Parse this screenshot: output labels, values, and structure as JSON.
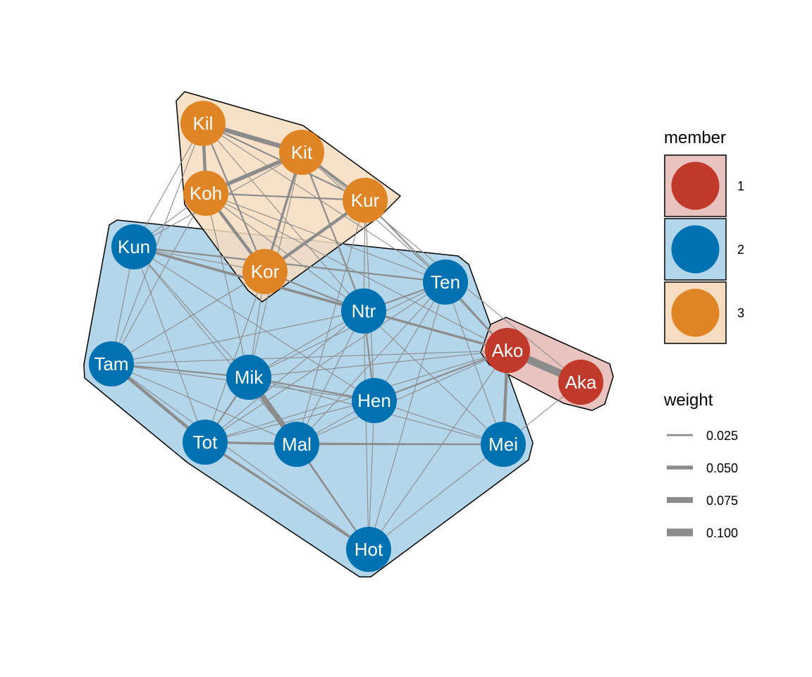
{
  "colors": {
    "member_1": "#c0392b",
    "member_2": "#0072b2",
    "member_3": "#e08526",
    "hull_1": "#e9c3c0",
    "hull_2": "#b4d6ea",
    "hull_3": "#f6dcc0",
    "edge": "#8c8c8c"
  },
  "nodes": [
    {
      "id": "Kil",
      "label": "Kil",
      "member": 3
    },
    {
      "id": "Kit",
      "label": "Kit",
      "member": 3
    },
    {
      "id": "Koh",
      "label": "Koh",
      "member": 3
    },
    {
      "id": "Kur",
      "label": "Kur",
      "member": 3
    },
    {
      "id": "Kor",
      "label": "Kor",
      "member": 3
    },
    {
      "id": "Kun",
      "label": "Kun",
      "member": 2
    },
    {
      "id": "Ten",
      "label": "Ten",
      "member": 2
    },
    {
      "id": "Ntr",
      "label": "Ntr",
      "member": 2
    },
    {
      "id": "Tam",
      "label": "Tam",
      "member": 2
    },
    {
      "id": "Mik",
      "label": "Mik",
      "member": 2
    },
    {
      "id": "Hen",
      "label": "Hen",
      "member": 2
    },
    {
      "id": "Tot",
      "label": "Tot",
      "member": 2
    },
    {
      "id": "Mal",
      "label": "Mal",
      "member": 2
    },
    {
      "id": "Mei",
      "label": "Mei",
      "member": 2
    },
    {
      "id": "Hot",
      "label": "Hot",
      "member": 2
    },
    {
      "id": "Ako",
      "label": "Ako",
      "member": 1
    },
    {
      "id": "Aka",
      "label": "Aka",
      "member": 1
    }
  ],
  "edges": [
    [
      "Kil",
      "Kit",
      0.06
    ],
    [
      "Kil",
      "Koh",
      0.04
    ],
    [
      "Kil",
      "Kur",
      0.02
    ],
    [
      "Kil",
      "Kor",
      0.02
    ],
    [
      "Kil",
      "Kun",
      0.01
    ],
    [
      "Kil",
      "Ntr",
      0.01
    ],
    [
      "Kil",
      "Ten",
      0.01
    ],
    [
      "Kit",
      "Koh",
      0.05
    ],
    [
      "Kit",
      "Kur",
      0.03
    ],
    [
      "Kit",
      "Kor",
      0.03
    ],
    [
      "Kit",
      "Ntr",
      0.02
    ],
    [
      "Kit",
      "Mik",
      0.01
    ],
    [
      "Kit",
      "Kun",
      0.01
    ],
    [
      "Kit",
      "Ten",
      0.01
    ],
    [
      "Koh",
      "Kur",
      0.02
    ],
    [
      "Koh",
      "Kor",
      0.04
    ],
    [
      "Koh",
      "Kun",
      0.01
    ],
    [
      "Koh",
      "Ten",
      0.01
    ],
    [
      "Koh",
      "Ntr",
      0.01
    ],
    [
      "Koh",
      "Ako",
      0.01
    ],
    [
      "Koh",
      "Mik",
      0.01
    ],
    [
      "Koh",
      "Tam",
      0.01
    ],
    [
      "Kur",
      "Kor",
      0.04
    ],
    [
      "Kur",
      "Ntr",
      0.01
    ],
    [
      "Kur",
      "Ten",
      0.01
    ],
    [
      "Kur",
      "Mal",
      0.01
    ],
    [
      "Kur",
      "Hen",
      0.01
    ],
    [
      "Kur",
      "Ako",
      0.01
    ],
    [
      "Kor",
      "Ntr",
      0.02
    ],
    [
      "Kor",
      "Tam",
      0.01
    ],
    [
      "Kor",
      "Mik",
      0.01
    ],
    [
      "Kor",
      "Tot",
      0.01
    ],
    [
      "Kun",
      "Ten",
      0.02
    ],
    [
      "Kun",
      "Ntr",
      0.03
    ],
    [
      "Kun",
      "Tam",
      0.01
    ],
    [
      "Kun",
      "Mik",
      0.01
    ],
    [
      "Kun",
      "Ako",
      0.03
    ],
    [
      "Kun",
      "Tot",
      0.01
    ],
    [
      "Kun",
      "Hen",
      0.01
    ],
    [
      "Kun",
      "Mal",
      0.01
    ],
    [
      "Kun",
      "Kor",
      0.01
    ],
    [
      "Ten",
      "Ntr",
      0.02
    ],
    [
      "Ten",
      "Ako",
      0.02
    ],
    [
      "Ten",
      "Mik",
      0.01
    ],
    [
      "Ten",
      "Tot",
      0.01
    ],
    [
      "Ten",
      "Hen",
      0.01
    ],
    [
      "Ten",
      "Mal",
      0.01
    ],
    [
      "Ten",
      "Mei",
      0.01
    ],
    [
      "Ten",
      "Hot",
      0.01
    ],
    [
      "Ntr",
      "Ako",
      0.02
    ],
    [
      "Ntr",
      "Hen",
      0.02
    ],
    [
      "Ntr",
      "Mik",
      0.01
    ],
    [
      "Ntr",
      "Tam",
      0.01
    ],
    [
      "Ntr",
      "Tot",
      0.01
    ],
    [
      "Ntr",
      "Mal",
      0.01
    ],
    [
      "Ntr",
      "Hot",
      0.01
    ],
    [
      "Ntr",
      "Mei",
      0.01
    ],
    [
      "Tam",
      "Tot",
      0.04
    ],
    [
      "Tam",
      "Mik",
      0.02
    ],
    [
      "Tam",
      "Ako",
      0.01
    ],
    [
      "Tam",
      "Hen",
      0.01
    ],
    [
      "Tam",
      "Mal",
      0.01
    ],
    [
      "Tam",
      "Hot",
      0.01
    ],
    [
      "Mik",
      "Mal",
      0.07
    ],
    [
      "Mik",
      "Hen",
      0.02
    ],
    [
      "Mik",
      "Tot",
      0.02
    ],
    [
      "Mik",
      "Ako",
      0.01
    ],
    [
      "Mik",
      "Mei",
      0.01
    ],
    [
      "Mik",
      "Hot",
      0.01
    ],
    [
      "Hen",
      "Ako",
      0.02
    ],
    [
      "Hen",
      "Tot",
      0.01
    ],
    [
      "Hen",
      "Mal",
      0.01
    ],
    [
      "Hen",
      "Mei",
      0.01
    ],
    [
      "Hen",
      "Hot",
      0.01
    ],
    [
      "Tot",
      "Mal",
      0.03
    ],
    [
      "Tot",
      "Hot",
      0.03
    ],
    [
      "Tot",
      "Mei",
      0.01
    ],
    [
      "Tot",
      "Ako",
      0.01
    ],
    [
      "Mal",
      "Mei",
      0.02
    ],
    [
      "Mal",
      "Hot",
      0.02
    ],
    [
      "Mal",
      "Ako",
      0.01
    ],
    [
      "Mei",
      "Ako",
      0.04
    ],
    [
      "Mei",
      "Hot",
      0.01
    ],
    [
      "Mei",
      "Aka",
      0.01
    ],
    [
      "Hot",
      "Ako",
      0.01
    ],
    [
      "Ako",
      "Aka",
      0.1
    ],
    [
      "Kil",
      "Tam",
      0.01
    ],
    [
      "Kit",
      "Aka",
      0.01
    ]
  ],
  "legend": {
    "member": {
      "title": "member",
      "items": [
        {
          "label": "1",
          "member": 1
        },
        {
          "label": "2",
          "member": 2
        },
        {
          "label": "3",
          "member": 3
        }
      ]
    },
    "weight": {
      "title": "weight",
      "items": [
        {
          "label": "0.025",
          "weight": 0.025
        },
        {
          "label": "0.050",
          "weight": 0.05
        },
        {
          "label": "0.075",
          "weight": 0.075
        },
        {
          "label": "0.100",
          "weight": 0.1
        }
      ]
    }
  }
}
